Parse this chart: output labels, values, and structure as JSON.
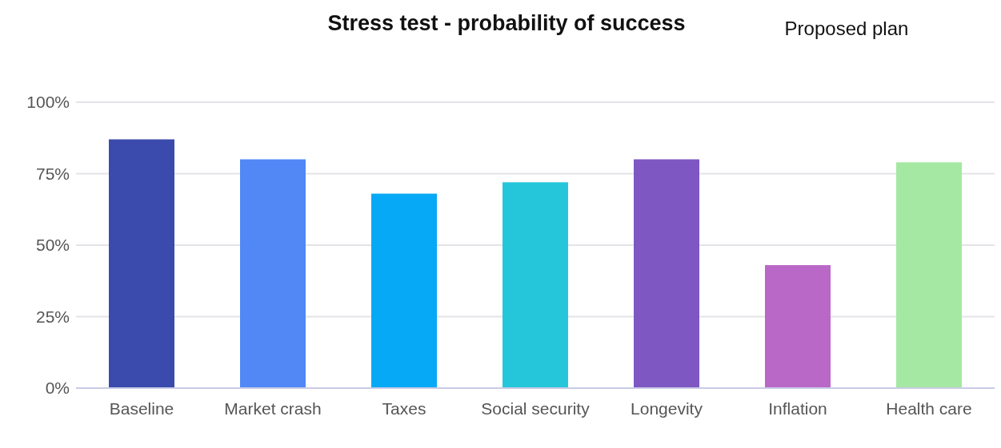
{
  "chart_data": {
    "type": "bar",
    "title": "Stress test - probability of success",
    "subtitle": "Proposed plan",
    "categories": [
      "Baseline",
      "Market crash",
      "Taxes",
      "Social security",
      "Longevity",
      "Inflation",
      "Health care"
    ],
    "values": [
      87,
      80,
      68,
      72,
      80,
      43,
      79
    ],
    "colors": [
      "#3a4aad",
      "#5288f5",
      "#06a9f5",
      "#26c6da",
      "#7e57c2",
      "#ba68c8",
      "#a5e8a3"
    ],
    "ylim": [
      0,
      100
    ],
    "yticks": [
      {
        "value": 0,
        "label": "0%"
      },
      {
        "value": 25,
        "label": "25%"
      },
      {
        "value": 50,
        "label": "50%"
      },
      {
        "value": 75,
        "label": "75%"
      },
      {
        "value": 100,
        "label": "100%"
      }
    ],
    "grid": "y"
  }
}
